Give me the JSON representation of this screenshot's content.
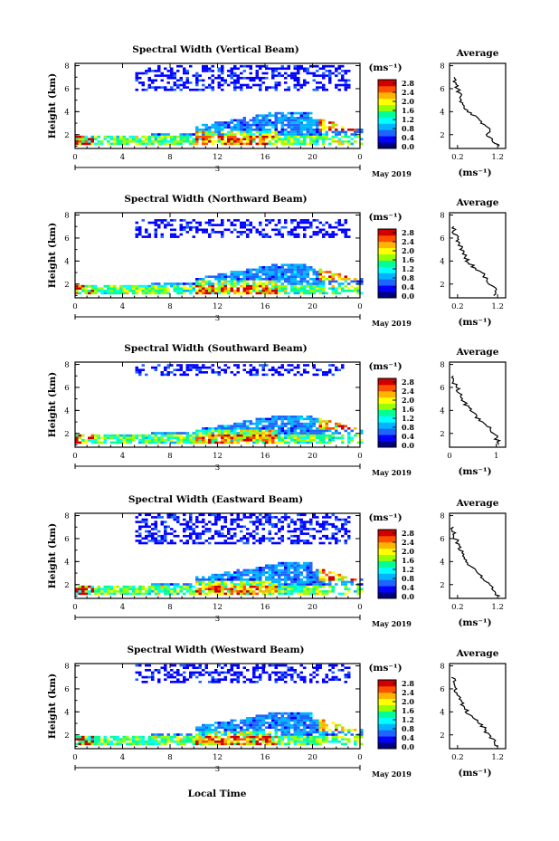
{
  "colorbar": {
    "unit": "(ms⁻¹)",
    "tick_labels": [
      "0.0",
      "0.4",
      "0.8",
      "1.2",
      "1.6",
      "2.0",
      "2.4",
      "2.8"
    ],
    "range": [
      0,
      3.0
    ],
    "colors": [
      "#000080",
      "#0000ff",
      "#1e64ff",
      "#00b4ff",
      "#00ffff",
      "#00ff96",
      "#96ff00",
      "#ffff00",
      "#ffb400",
      "#ff5000",
      "#d00000"
    ]
  },
  "shared_axes": {
    "xlabel": "Local Time",
    "x_tick_labels": [
      "0",
      "4",
      "8",
      "12",
      "16",
      "20",
      "0"
    ],
    "date_marker": "3",
    "date_label": "May 2019",
    "ylabel": "Height (km)",
    "y_tick_labels": [
      "2",
      "4",
      "6",
      "8"
    ],
    "ylim_km": [
      0.8,
      8.2
    ],
    "xlim_hours": [
      0,
      24
    ]
  },
  "chart_data": [
    {
      "type": "heatmap",
      "title": "Spectral Width (Vertical Beam)",
      "profile_title": "Average",
      "profile_xticks": [
        "0.2",
        "1.2"
      ],
      "profile_xlim": [
        0.0,
        1.4
      ],
      "profile_xlabel": "(ms⁻¹)",
      "average_profile": {
        "height_km": [
          1.0,
          1.5,
          2.0,
          2.5,
          3.0,
          3.5,
          4.0,
          4.5,
          5.0,
          5.5,
          6.0,
          6.5,
          7.0
        ],
        "width_ms": [
          1.2,
          1.1,
          0.9,
          1.0,
          0.8,
          0.65,
          0.5,
          0.35,
          0.3,
          0.25,
          0.2,
          0.15,
          0.1
        ]
      },
      "cloud_top_km": 4.2,
      "upper_band": [
        5.8,
        8.0
      ]
    },
    {
      "type": "heatmap",
      "title": "Spectral Width (Northward Beam)",
      "profile_title": "Average",
      "profile_xticks": [
        "0.2",
        "1.2"
      ],
      "profile_xlim": [
        0.0,
        1.4
      ],
      "profile_xlabel": "(ms⁻¹)",
      "average_profile": {
        "height_km": [
          1.0,
          1.5,
          2.0,
          2.5,
          3.0,
          3.5,
          4.0,
          4.5,
          5.0,
          5.5,
          6.0,
          6.5,
          7.0
        ],
        "width_ms": [
          1.1,
          1.2,
          1.0,
          0.9,
          0.8,
          0.6,
          0.45,
          0.4,
          0.3,
          0.25,
          0.2,
          0.12,
          0.1
        ]
      },
      "cloud_top_km": 3.8,
      "upper_band": [
        6.0,
        7.5
      ]
    },
    {
      "type": "heatmap",
      "title": "Spectral Width (Southward Beam)",
      "profile_title": "Average",
      "profile_xticks": [
        "0",
        "1"
      ],
      "profile_xlim": [
        0.0,
        1.2
      ],
      "profile_xlabel": "(ms⁻¹)",
      "average_profile": {
        "height_km": [
          1.0,
          1.5,
          2.0,
          2.5,
          3.0,
          3.5,
          4.0,
          4.5,
          5.0,
          5.5,
          6.0,
          6.5,
          7.0
        ],
        "width_ms": [
          1.1,
          1.0,
          0.95,
          0.85,
          0.7,
          0.55,
          0.45,
          0.35,
          0.3,
          0.2,
          0.15,
          0.1,
          0.05
        ]
      },
      "cloud_top_km": 3.5,
      "upper_band": [
        7.0,
        8.0
      ]
    },
    {
      "type": "heatmap",
      "title": "Spectral Width (Eastward Beam)",
      "profile_title": "Average",
      "profile_xticks": [
        "0.2",
        "1.2"
      ],
      "profile_xlim": [
        0.0,
        1.4
      ],
      "profile_xlabel": "(ms⁻¹)",
      "average_profile": {
        "height_km": [
          1.0,
          1.5,
          2.0,
          2.5,
          3.0,
          3.5,
          4.0,
          4.5,
          5.0,
          5.5,
          6.0,
          6.5,
          7.0
        ],
        "width_ms": [
          1.2,
          1.1,
          1.0,
          0.85,
          0.7,
          0.55,
          0.45,
          0.35,
          0.3,
          0.2,
          0.15,
          0.1,
          0.05
        ]
      },
      "cloud_top_km": 4.0,
      "upper_band": [
        5.5,
        8.0
      ]
    },
    {
      "type": "heatmap",
      "title": "Spectral Width (Westward Beam)",
      "profile_title": "Average",
      "profile_xticks": [
        "0.2",
        "1.2"
      ],
      "profile_xlim": [
        0.0,
        1.4
      ],
      "profile_xlabel": "(ms⁻¹)",
      "average_profile": {
        "height_km": [
          1.0,
          1.5,
          2.0,
          2.5,
          3.0,
          3.5,
          4.0,
          4.5,
          5.0,
          5.5,
          6.0,
          6.5,
          7.0
        ],
        "width_ms": [
          1.2,
          1.1,
          0.95,
          0.9,
          0.75,
          0.55,
          0.45,
          0.35,
          0.3,
          0.2,
          0.15,
          0.12,
          0.1
        ]
      },
      "cloud_top_km": 4.2,
      "upper_band": [
        6.5,
        8.0
      ]
    }
  ]
}
